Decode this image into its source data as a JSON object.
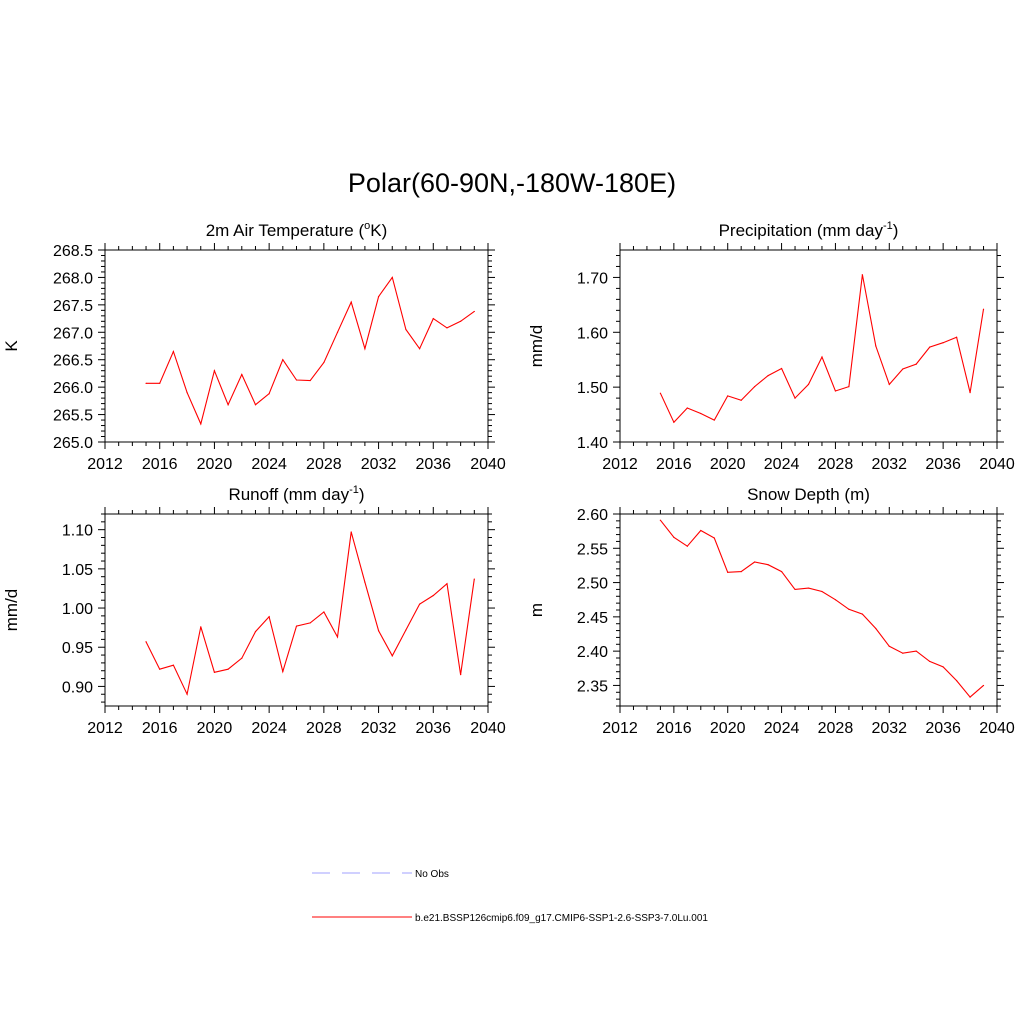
{
  "figure": {
    "title": "Polar(60-90N,-180W-180E)"
  },
  "colors": {
    "model_line": "#ff0000",
    "obs_line": "#a0a0ff",
    "axis": "#000000"
  },
  "chart_data": [
    {
      "type": "line",
      "title": "2m Air Temperature (",
      "title_sup": "o",
      "title_after": "K)",
      "ylabel": "K",
      "xlim": [
        2012,
        2040
      ],
      "xticks": [
        "2012",
        "2016",
        "2020",
        "2024",
        "2028",
        "2032",
        "2036",
        "2040"
      ],
      "ylim": [
        265.0,
        268.5
      ],
      "yticks": [
        "265.0",
        "265.5",
        "266.0",
        "266.5",
        "267.0",
        "267.5",
        "268.0",
        "268.5"
      ],
      "x": [
        2015,
        2016,
        2017,
        2018,
        2019,
        2020,
        2021,
        2022,
        2023,
        2024,
        2025,
        2026,
        2027,
        2028,
        2029,
        2030,
        2031,
        2032,
        2033,
        2034,
        2035,
        2036,
        2037,
        2038,
        2039
      ],
      "series": [
        {
          "values": [
            266.07,
            266.07,
            266.65,
            265.9,
            265.33,
            266.3,
            265.68,
            266.23,
            265.68,
            265.88,
            266.5,
            266.13,
            266.12,
            266.45,
            267.0,
            267.55,
            266.7,
            267.65,
            268.0,
            267.05,
            266.7,
            267.25,
            267.08,
            267.2,
            267.38
          ]
        }
      ]
    },
    {
      "type": "line",
      "title": "Precipitation (mm day",
      "title_sup": "-1",
      "title_after": ")",
      "ylabel": "mm/d",
      "xlim": [
        2012,
        2040
      ],
      "xticks": [
        "2012",
        "2016",
        "2020",
        "2024",
        "2028",
        "2032",
        "2036",
        "2040"
      ],
      "ylim": [
        1.4,
        1.75
      ],
      "yticks": [
        "1.40",
        "1.50",
        "1.60",
        "1.70"
      ],
      "x": [
        2015,
        2016,
        2017,
        2018,
        2019,
        2020,
        2021,
        2022,
        2023,
        2024,
        2025,
        2026,
        2027,
        2028,
        2029,
        2030,
        2031,
        2032,
        2033,
        2034,
        2035,
        2036,
        2037,
        2038,
        2039
      ],
      "series": [
        {
          "values": [
            1.489,
            1.436,
            1.462,
            1.452,
            1.44,
            1.484,
            1.476,
            1.501,
            1.521,
            1.534,
            1.48,
            1.505,
            1.555,
            1.493,
            1.501,
            1.705,
            1.575,
            1.505,
            1.533,
            1.542,
            1.573,
            1.581,
            1.591,
            1.49,
            1.642
          ]
        }
      ]
    },
    {
      "type": "line",
      "title": "Runoff (mm day",
      "title_sup": "-1",
      "title_after": ")",
      "ylabel": "mm/d",
      "xlim": [
        2012,
        2040
      ],
      "xticks": [
        "2012",
        "2016",
        "2020",
        "2024",
        "2028",
        "2032",
        "2036",
        "2040"
      ],
      "ylim": [
        0.875,
        1.12
      ],
      "yticks": [
        "0.90",
        "0.95",
        "1.00",
        "1.05",
        "1.10"
      ],
      "x": [
        2015,
        2016,
        2017,
        2018,
        2019,
        2020,
        2021,
        2022,
        2023,
        2024,
        2025,
        2026,
        2027,
        2028,
        2029,
        2030,
        2031,
        2032,
        2033,
        2034,
        2035,
        2036,
        2037,
        2038,
        2039
      ],
      "series": [
        {
          "values": [
            0.957,
            0.922,
            0.927,
            0.89,
            0.976,
            0.918,
            0.922,
            0.936,
            0.97,
            0.989,
            0.919,
            0.977,
            0.981,
            0.995,
            0.963,
            1.097,
            1.033,
            0.971,
            0.939,
            0.972,
            1.005,
            1.016,
            1.031,
            0.915,
            1.037
          ]
        }
      ]
    },
    {
      "type": "line",
      "title": "Snow Depth (m)",
      "title_sup": "",
      "title_after": "",
      "ylabel": "m",
      "xlim": [
        2012,
        2040
      ],
      "xticks": [
        "2012",
        "2016",
        "2020",
        "2024",
        "2028",
        "2032",
        "2036",
        "2040"
      ],
      "ylim": [
        2.32,
        2.6
      ],
      "yticks": [
        "2.35",
        "2.40",
        "2.45",
        "2.50",
        "2.55",
        "2.60"
      ],
      "x": [
        2015,
        2016,
        2017,
        2018,
        2019,
        2020,
        2021,
        2022,
        2023,
        2024,
        2025,
        2026,
        2027,
        2028,
        2029,
        2030,
        2031,
        2032,
        2033,
        2034,
        2035,
        2036,
        2037,
        2038,
        2039
      ],
      "series": [
        {
          "values": [
            2.591,
            2.566,
            2.553,
            2.576,
            2.565,
            2.515,
            2.516,
            2.53,
            2.526,
            2.516,
            2.49,
            2.492,
            2.487,
            2.475,
            2.461,
            2.454,
            2.433,
            2.407,
            2.397,
            2.4,
            2.385,
            2.377,
            2.357,
            2.333,
            2.35
          ]
        }
      ]
    }
  ],
  "legend": {
    "items": [
      {
        "label": "No Obs",
        "style": "dashed"
      },
      {
        "label": "b.e21.BSSP126cmip6.f09_g17.CMIP6-SSP1-2.6-SSP3-7.0Lu.001",
        "style": "solid"
      }
    ]
  }
}
